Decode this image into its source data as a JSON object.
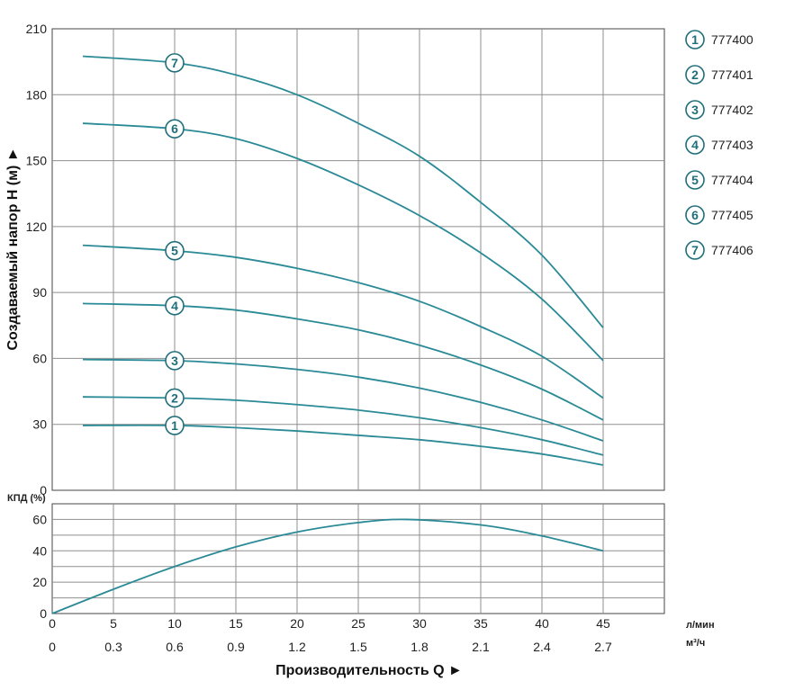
{
  "chart_data": [
    {
      "type": "line",
      "ylabel": "Создаваемый напор H (м) ►",
      "ylim": [
        0,
        210
      ],
      "yticks": [
        0,
        30,
        60,
        90,
        120,
        150,
        180,
        210
      ],
      "x_lpm_ticks": [
        0,
        5,
        10,
        15,
        20,
        25,
        30,
        35,
        40,
        45
      ],
      "xlim": [
        0,
        50
      ],
      "grid": true,
      "line_color": "#2a8a96",
      "series": [
        {
          "name": "1",
          "x": [
            2.5,
            10,
            15,
            20,
            25,
            30,
            35,
            40,
            45
          ],
          "y": [
            29.5,
            29.5,
            28.5,
            27,
            25,
            23,
            20,
            16.5,
            11.5
          ]
        },
        {
          "name": "2",
          "x": [
            2.5,
            10,
            15,
            20,
            25,
            30,
            35,
            40,
            45
          ],
          "y": [
            42.5,
            42,
            41,
            39,
            36.5,
            33,
            28.5,
            23,
            16
          ]
        },
        {
          "name": "3",
          "x": [
            2.5,
            10,
            15,
            20,
            25,
            30,
            35,
            40,
            45
          ],
          "y": [
            59.5,
            59,
            57.5,
            55,
            51.5,
            46.5,
            40,
            32,
            22.5
          ]
        },
        {
          "name": "4",
          "x": [
            2.5,
            10,
            15,
            20,
            25,
            30,
            35,
            40,
            45
          ],
          "y": [
            85,
            84,
            82,
            78,
            73,
            66,
            57,
            46,
            32
          ]
        },
        {
          "name": "5",
          "x": [
            2.5,
            10,
            15,
            20,
            25,
            30,
            35,
            40,
            45
          ],
          "y": [
            111.5,
            109,
            106,
            101,
            94.5,
            86,
            74.5,
            61,
            42
          ]
        },
        {
          "name": "6",
          "x": [
            2.5,
            10,
            15,
            20,
            25,
            30,
            35,
            40,
            45
          ],
          "y": [
            167,
            164.5,
            160,
            151,
            139,
            125,
            108,
            87,
            59
          ]
        },
        {
          "name": "7",
          "x": [
            2.5,
            10,
            15,
            20,
            25,
            30,
            35,
            40,
            45
          ],
          "y": [
            197.5,
            194.5,
            189,
            180,
            167,
            152,
            131,
            107,
            74
          ]
        }
      ],
      "label_x": 10
    },
    {
      "type": "line",
      "ylabel": "КПД (%)",
      "ylim": [
        0,
        70
      ],
      "yticks": [
        0,
        20,
        40,
        60
      ],
      "xlabel": "Производительность Q ►",
      "x_lpm_ticks": [
        0,
        5,
        10,
        15,
        20,
        25,
        30,
        35,
        40,
        45
      ],
      "x_m3h_ticks": [
        "0",
        "0.3",
        "0.6",
        "0.9",
        "1.2",
        "1.5",
        "1.8",
        "2.1",
        "2.4",
        "2.7"
      ],
      "x_unit_lpm": "л/мин",
      "x_unit_m3h": "м³/ч",
      "xlim": [
        0,
        50
      ],
      "grid": true,
      "series": [
        {
          "name": "КПД",
          "x": [
            0,
            5,
            10,
            15,
            20,
            25,
            29,
            35,
            40,
            45
          ],
          "y": [
            0,
            15.5,
            30,
            42.5,
            52,
            58,
            60,
            56.5,
            49.5,
            40
          ]
        }
      ]
    }
  ],
  "legend": [
    {
      "num": "1",
      "code": "777400"
    },
    {
      "num": "2",
      "code": "777401"
    },
    {
      "num": "3",
      "code": "777402"
    },
    {
      "num": "4",
      "code": "777403"
    },
    {
      "num": "5",
      "code": "777404"
    },
    {
      "num": "6",
      "code": "777405"
    },
    {
      "num": "7",
      "code": "777406"
    }
  ]
}
